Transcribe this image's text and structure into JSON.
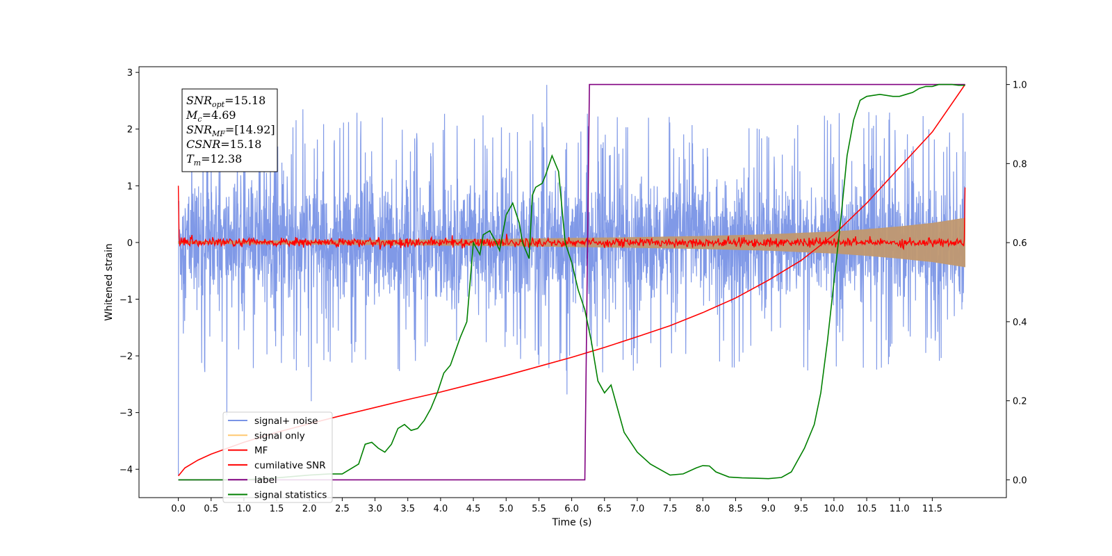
{
  "chart_data": {
    "type": "line",
    "xlabel": "Time (s)",
    "ylabel_left": "Whitened strain",
    "ylabel_right": "",
    "xlim": [
      -0.6,
      12.63
    ],
    "ylim_left": [
      -4.5,
      3.1
    ],
    "ylim_right": [
      -0.045,
      1.045
    ],
    "x_ticks": [
      0.0,
      0.5,
      1.0,
      1.5,
      2.0,
      2.5,
      3.0,
      3.5,
      4.0,
      4.5,
      5.0,
      5.5,
      6.0,
      6.5,
      7.0,
      7.5,
      8.0,
      8.5,
      9.0,
      9.5,
      10.0,
      10.5,
      11.0,
      11.5
    ],
    "x_tick_labels": [
      "0.0",
      "0.5",
      "1.0",
      "1.5",
      "2.0",
      "2.5",
      "3.0",
      "3.5",
      "4.0",
      "4.5",
      "5.0",
      "5.5",
      "6.0",
      "6.5",
      "7.0",
      "7.5",
      "8.0",
      "8.5",
      "9.0",
      "9.5",
      "10.0",
      "10.5",
      "11.0",
      "11.5"
    ],
    "y_left_ticks": [
      3,
      2,
      1,
      0,
      -1,
      -2,
      -3,
      -4
    ],
    "y_left_tick_labels": [
      "3",
      "2",
      "1",
      "0",
      "−1",
      "−2",
      "−3",
      "−4"
    ],
    "y_right_ticks": [
      1.0,
      0.8,
      0.6,
      0.4,
      0.2,
      0.0
    ],
    "y_right_tick_labels": [
      "1.0",
      "0.8",
      "0.6",
      "0.4",
      "0.2",
      "0.0"
    ],
    "grid": false,
    "legend_placement": "lower-left",
    "annotation": [
      {
        "base": "SNR",
        "sub": "opt",
        "value": "=15.18"
      },
      {
        "base": "M",
        "sub": "c",
        "value": "=4.69"
      },
      {
        "base": "SNR",
        "sub": "MF",
        "value": "=[14.92]"
      },
      {
        "base": "CSNR",
        "sub": "",
        "value": "=15.18"
      },
      {
        "base": "T",
        "sub": "m",
        "value": "=12.38"
      }
    ],
    "series": [
      {
        "name": "signal+ noise",
        "axis": "left",
        "color": "#7994e6",
        "kind": "noise",
        "x_range": [
          0.0,
          12.0
        ],
        "std": 0.85,
        "extremes": [
          [
            0.0,
            -4.1
          ],
          [
            0.0,
            1.85
          ],
          [
            0.74,
            -3.05
          ],
          [
            1.9,
            2.35
          ],
          [
            2.03,
            -2.8
          ],
          [
            5.62,
            2.78
          ],
          [
            5.93,
            -2.68
          ],
          [
            6.28,
            -1.55
          ]
        ]
      },
      {
        "name": "signal only",
        "axis": "left",
        "color": "#ffc870",
        "kind": "envelope",
        "x": [
          0.0,
          3.0,
          5.0,
          6.0,
          7.0,
          8.0,
          9.0,
          10.0,
          10.5,
          11.0,
          11.5,
          12.0
        ],
        "amplitude": [
          0.02,
          0.04,
          0.06,
          0.075,
          0.09,
          0.11,
          0.14,
          0.19,
          0.23,
          0.28,
          0.34,
          0.43
        ]
      },
      {
        "name": "MF",
        "axis": "left",
        "color": "#ff0000",
        "kind": "mf",
        "x_range": [
          0.0,
          12.0
        ],
        "start": 1.0,
        "noise_std": 0.04,
        "end": 0.97
      },
      {
        "name": "cumilative SNR",
        "axis": "right",
        "color": "#ff0000",
        "kind": "line",
        "x": [
          0.0,
          0.1,
          0.3,
          0.5,
          1.0,
          1.5,
          2.0,
          2.5,
          3.0,
          3.5,
          4.0,
          4.5,
          5.0,
          5.5,
          6.0,
          6.5,
          7.0,
          7.5,
          8.0,
          8.5,
          9.0,
          9.5,
          10.0,
          10.5,
          11.0,
          11.5,
          12.0
        ],
        "y": [
          0.01,
          0.03,
          0.05,
          0.065,
          0.095,
          0.12,
          0.142,
          0.163,
          0.183,
          0.203,
          0.222,
          0.243,
          0.264,
          0.287,
          0.31,
          0.335,
          0.362,
          0.39,
          0.423,
          0.46,
          0.505,
          0.555,
          0.62,
          0.7,
          0.79,
          0.88,
          1.0
        ]
      },
      {
        "name": "label",
        "axis": "right",
        "color": "#800080",
        "kind": "line",
        "x": [
          0.0,
          6.2,
          6.27,
          12.0
        ],
        "y": [
          0.0,
          0.0,
          1.0,
          1.0
        ]
      },
      {
        "name": "signal statistics",
        "axis": "right",
        "color": "#008000",
        "kind": "line",
        "x": [
          0.0,
          1.0,
          1.5,
          2.0,
          2.3,
          2.5,
          2.75,
          2.85,
          2.95,
          3.05,
          3.15,
          3.25,
          3.35,
          3.45,
          3.55,
          3.65,
          3.75,
          3.85,
          3.95,
          4.05,
          4.15,
          4.3,
          4.4,
          4.5,
          4.6,
          4.65,
          4.75,
          4.85,
          4.9,
          5.0,
          5.1,
          5.2,
          5.25,
          5.35,
          5.4,
          5.45,
          5.55,
          5.6,
          5.7,
          5.8,
          5.9,
          6.0,
          6.1,
          6.2,
          6.3,
          6.4,
          6.5,
          6.6,
          6.7,
          6.8,
          7.0,
          7.2,
          7.5,
          7.7,
          7.9,
          8.0,
          8.1,
          8.2,
          8.4,
          8.6,
          8.8,
          9.0,
          9.2,
          9.35,
          9.45,
          9.55,
          9.7,
          9.8,
          9.9,
          10.0,
          10.1,
          10.2,
          10.3,
          10.4,
          10.5,
          10.7,
          10.9,
          11.0,
          11.1,
          11.2,
          11.3,
          11.4,
          11.5,
          11.6,
          11.7,
          11.8,
          11.9,
          12.0
        ],
        "y": [
          0.0,
          0.0,
          0.005,
          0.012,
          0.015,
          0.015,
          0.04,
          0.09,
          0.095,
          0.08,
          0.07,
          0.09,
          0.13,
          0.14,
          0.125,
          0.13,
          0.15,
          0.18,
          0.22,
          0.27,
          0.29,
          0.36,
          0.4,
          0.6,
          0.57,
          0.62,
          0.63,
          0.6,
          0.58,
          0.67,
          0.7,
          0.65,
          0.6,
          0.56,
          0.72,
          0.74,
          0.75,
          0.77,
          0.82,
          0.78,
          0.6,
          0.55,
          0.48,
          0.43,
          0.35,
          0.25,
          0.22,
          0.24,
          0.18,
          0.12,
          0.07,
          0.04,
          0.012,
          0.015,
          0.03,
          0.036,
          0.035,
          0.02,
          0.007,
          0.005,
          0.004,
          0.003,
          0.006,
          0.02,
          0.05,
          0.08,
          0.14,
          0.22,
          0.35,
          0.5,
          0.65,
          0.82,
          0.91,
          0.96,
          0.97,
          0.975,
          0.97,
          0.97,
          0.975,
          0.98,
          0.99,
          0.995,
          0.995,
          1.0,
          1.0,
          1.0,
          0.998,
          0.998
        ]
      }
    ]
  }
}
